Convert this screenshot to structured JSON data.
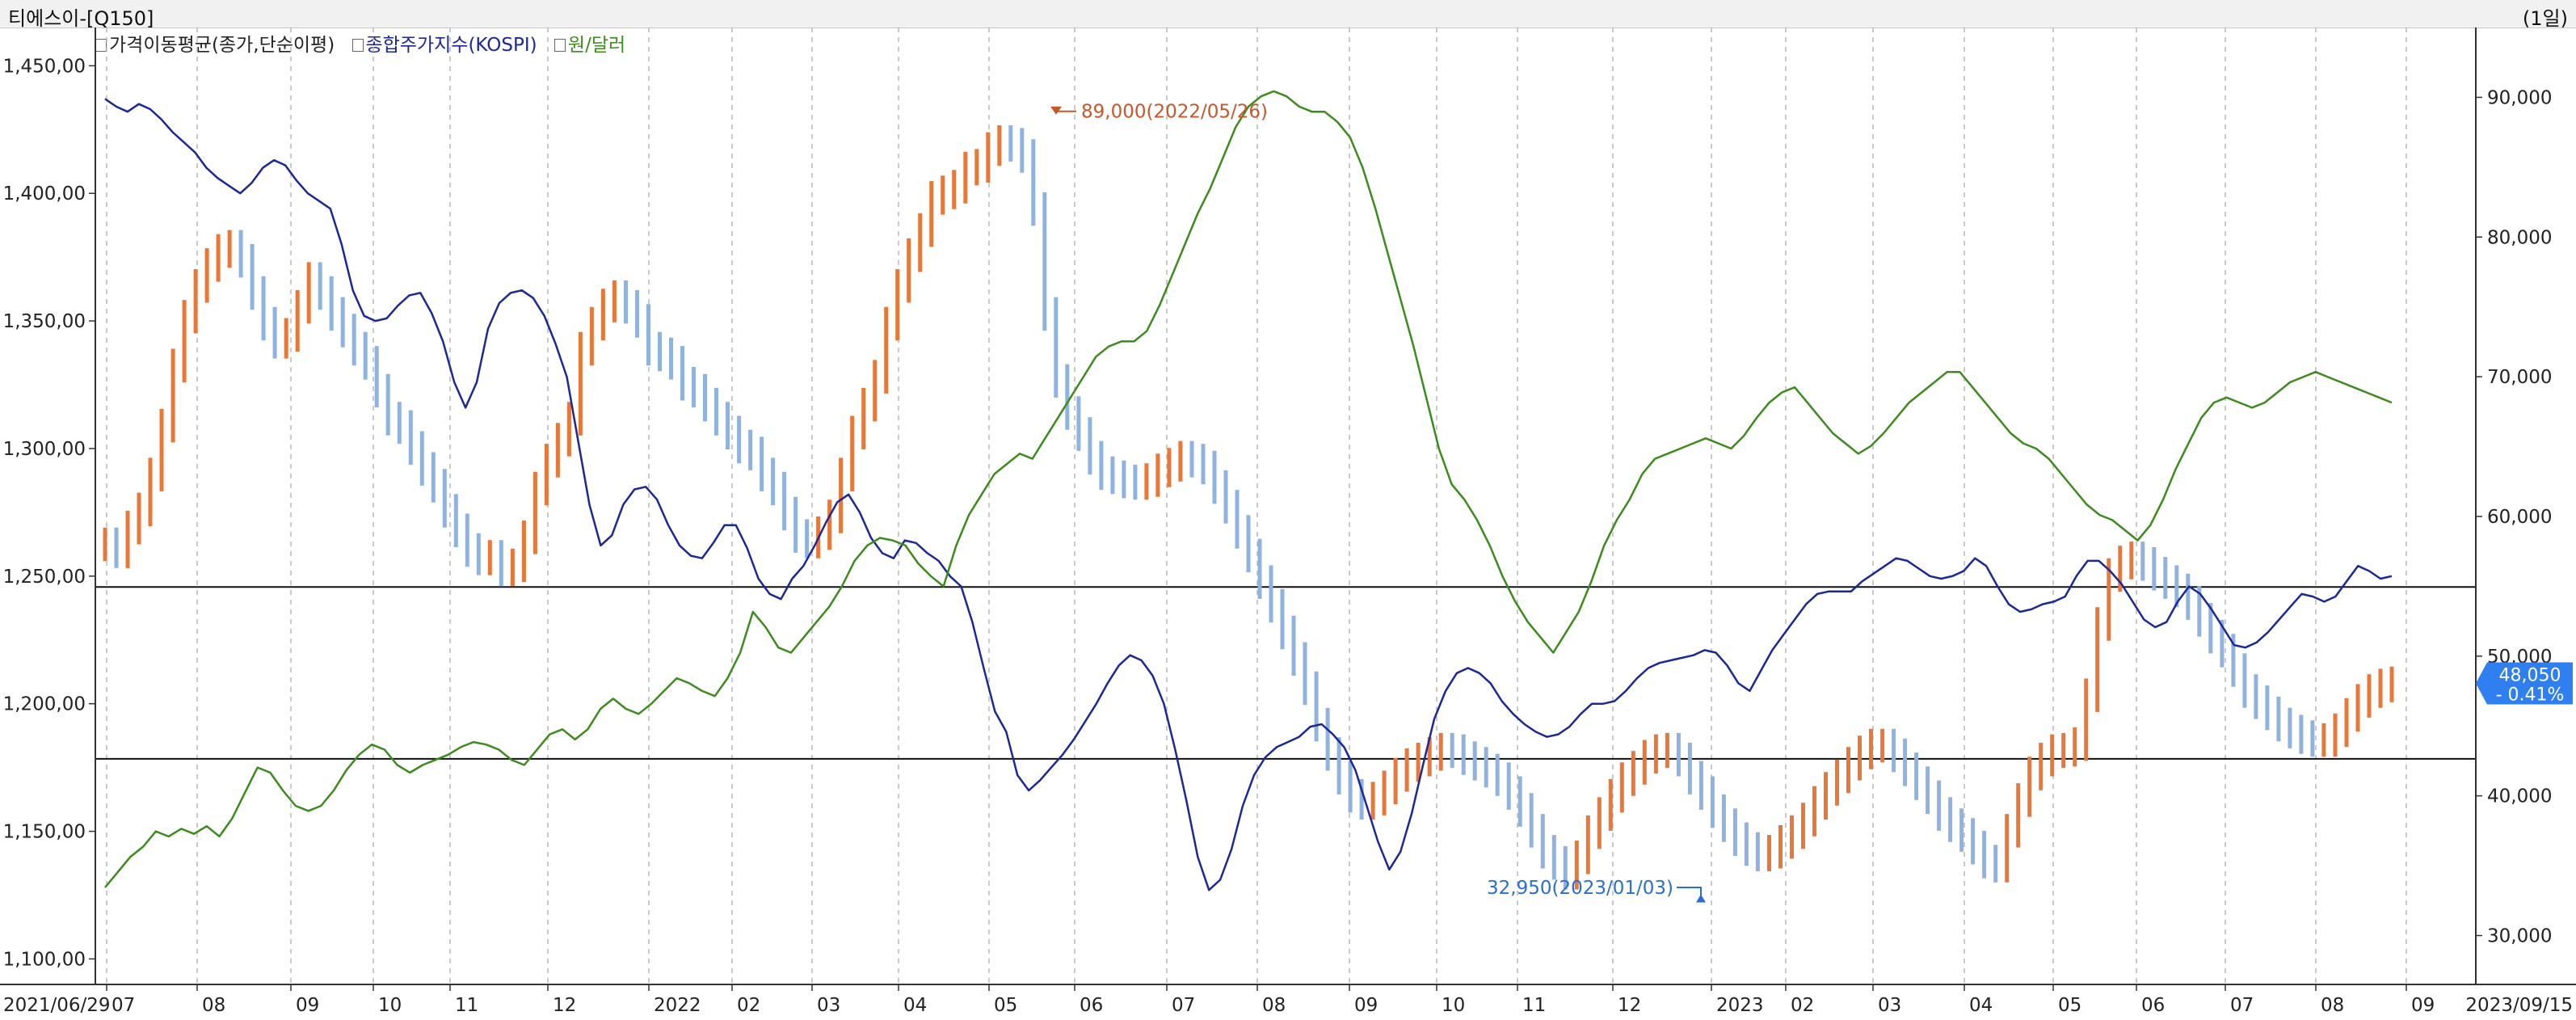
{
  "window": {
    "title": "티에스이-[Q150]",
    "period": "(1일)"
  },
  "legend": [
    {
      "label": "가격이동평균(종가,단순이평)",
      "color": "#222222"
    },
    {
      "label": "종합주가지수(KOSPI)",
      "color": "#1c2896"
    },
    {
      "label": "원/달러",
      "color": "#3d8a1e"
    }
  ],
  "chart_data": {
    "type": "line",
    "x_start_label": "2021/06/29",
    "x_end_label": "2023/09/15",
    "xticks": [
      "07",
      "08",
      "09",
      "10",
      "11",
      "12",
      "2022",
      "02",
      "03",
      "04",
      "05",
      "06",
      "07",
      "08",
      "09",
      "10",
      "11",
      "12",
      "2023",
      "02",
      "03",
      "04",
      "05",
      "06",
      "07",
      "08",
      "09"
    ],
    "left_axis": {
      "ticks": [
        "1,100,00",
        "1,150,00",
        "1,200,00",
        "1,250,00",
        "1,300,00",
        "1,350,00",
        "1,400,00",
        "1,450,00"
      ],
      "range": [
        1090,
        1465
      ]
    },
    "right_axis": {
      "ticks": [
        "30,000",
        "40,000",
        "50,000",
        "60,000",
        "70,000",
        "80,000",
        "90,000"
      ],
      "range": [
        26500,
        95000
      ]
    },
    "price_annotations": {
      "high": "89,000(2022/05/26)",
      "low": "32,950(2023/01/03)"
    },
    "current_value": {
      "price": "48,050",
      "change": "- 0.41%"
    },
    "horizontal_lines_right_axis": [
      54950,
      42650
    ],
    "series": [
      {
        "name": "가격이동평균(종가,단순이평)",
        "axis": "right",
        "color_up": "#e8773a",
        "color_down": "#8fb3de",
        "values": [
          58000,
          57500,
          59200,
          60500,
          63000,
          66500,
          70800,
          74300,
          76500,
          78000,
          79000,
          79300,
          78300,
          76000,
          73800,
          72500,
          73000,
          75000,
          77000,
          76000,
          74500,
          73300,
          72000,
          71000,
          69000,
          67000,
          66400,
          64900,
          63400,
          62200,
          60400,
          59000,
          57600,
          57000,
          57100,
          56200,
          56500,
          58500,
          62000,
          64000,
          65500,
          67000,
          72000,
          73800,
          75100,
          75700,
          75000,
          74000,
          72000,
          71600,
          71000,
          69500,
          69000,
          68000,
          67000,
          66000,
          65000,
          64500,
          63000,
          62000,
          60200,
          58600,
          58200,
          58800,
          60000,
          63000,
          66000,
          68000,
          70000,
          73800,
          76500,
          78700,
          80500,
          82800,
          83200,
          83600,
          84900,
          85100,
          86300,
          86800,
          86600,
          85800,
          82000,
          74500,
          69700,
          67400,
          65900,
          64200,
          63100,
          62800,
          62500,
          62400,
          62600,
          63300,
          63700,
          64200,
          64000,
          63500,
          62100,
          60700,
          58900,
          57200,
          55300,
          53600,
          51700,
          49800,
          47700,
          45100,
          43000,
          41300,
          40000,
          39500,
          39800,
          40600,
          41500,
          42200,
          42600,
          43000,
          43300,
          43200,
          42700,
          42300,
          41800,
          41200,
          40200,
          39000,
          37500,
          36000,
          35200,
          34500,
          35600,
          37400,
          38700,
          40000,
          41200,
          42000,
          42800,
          43200,
          43300,
          42600,
          41300,
          40200,
          38900,
          37900,
          36900,
          36200,
          35800,
          36000,
          36700,
          37400,
          38300,
          39500,
          40500,
          41400,
          42300,
          43100,
          43600,
          43600,
          42900,
          41900,
          40900,
          39900,
          38700,
          37900,
          37200,
          36300,
          35300,
          35000,
          37500,
          39700,
          41600,
          42600,
          43200,
          43300,
          43700,
          47200,
          52300,
          55800,
          56700,
          57000,
          56600,
          55900,
          55300,
          54700,
          53800,
          52600,
          51400,
          50400,
          49000,
          47500,
          46700,
          45900,
          45100,
          44600,
          44200,
          44000,
          44000,
          44700,
          45800,
          46800,
          47500,
          47900,
          48050
        ]
      },
      {
        "name": "종합주가지수(KOSPI)",
        "axis": "left",
        "color": "#1c2896",
        "values": [
          1437,
          1434,
          1432,
          1435,
          1433,
          1429,
          1424,
          1420,
          1416,
          1410,
          1406,
          1403,
          1400,
          1404,
          1410,
          1413,
          1411,
          1405,
          1400,
          1397,
          1394,
          1380,
          1362,
          1352,
          1350,
          1351,
          1356,
          1360,
          1361,
          1353,
          1342,
          1326,
          1316,
          1326,
          1347,
          1357,
          1361,
          1362,
          1359,
          1352,
          1341,
          1328,
          1303,
          1278,
          1262,
          1266,
          1278,
          1284,
          1285,
          1280,
          1270,
          1262,
          1258,
          1257,
          1263,
          1270,
          1270,
          1261,
          1249,
          1243,
          1241,
          1249,
          1254,
          1262,
          1271,
          1279,
          1282,
          1275,
          1265,
          1259,
          1257,
          1264,
          1263,
          1259,
          1256,
          1250,
          1246,
          1232,
          1214,
          1197,
          1189,
          1172,
          1166,
          1170,
          1175,
          1180,
          1186,
          1193,
          1200,
          1208,
          1215,
          1219,
          1217,
          1211,
          1200,
          1182,
          1162,
          1140,
          1127,
          1131,
          1143,
          1160,
          1172,
          1179,
          1183,
          1185,
          1187,
          1191,
          1192,
          1188,
          1183,
          1174,
          1160,
          1146,
          1135,
          1142,
          1157,
          1176,
          1194,
          1205,
          1212,
          1214,
          1212,
          1208,
          1201,
          1196,
          1192,
          1189,
          1187,
          1188,
          1191,
          1196,
          1200,
          1200,
          1201,
          1205,
          1210,
          1214,
          1216,
          1217,
          1218,
          1219,
          1221,
          1220,
          1215,
          1208,
          1205,
          1213,
          1221,
          1227,
          1233,
          1239,
          1243,
          1244,
          1244,
          1244,
          1248,
          1251,
          1254,
          1257,
          1256,
          1253,
          1250,
          1249,
          1250,
          1252,
          1257,
          1254,
          1246,
          1239,
          1236,
          1237,
          1239,
          1240,
          1242,
          1250,
          1256,
          1256,
          1252,
          1247,
          1240,
          1233,
          1230,
          1232,
          1240,
          1246,
          1243,
          1237,
          1230,
          1223,
          1222,
          1224,
          1228,
          1233,
          1238,
          1243,
          1242,
          1240,
          1242,
          1248,
          1254,
          1252,
          1249,
          1250
        ]
      },
      {
        "name": "원/달러",
        "axis": "left",
        "color": "#3d8a1e",
        "values": [
          1128,
          1134,
          1140,
          1144,
          1150,
          1148,
          1151,
          1149,
          1152,
          1148,
          1155,
          1165,
          1175,
          1173,
          1166,
          1160,
          1158,
          1160,
          1166,
          1174,
          1180,
          1184,
          1182,
          1176,
          1173,
          1176,
          1178,
          1180,
          1183,
          1185,
          1184,
          1182,
          1178,
          1176,
          1182,
          1188,
          1190,
          1186,
          1190,
          1198,
          1202,
          1198,
          1196,
          1200,
          1205,
          1210,
          1208,
          1205,
          1203,
          1210,
          1220,
          1236,
          1230,
          1222,
          1220,
          1226,
          1232,
          1238,
          1246,
          1256,
          1262,
          1265,
          1264,
          1262,
          1255,
          1250,
          1246,
          1262,
          1274,
          1282,
          1290,
          1294,
          1298,
          1296,
          1304,
          1312,
          1320,
          1328,
          1336,
          1340,
          1342,
          1342,
          1346,
          1356,
          1368,
          1380,
          1392,
          1402,
          1414,
          1426,
          1434,
          1438,
          1440,
          1438,
          1434,
          1432,
          1432,
          1428,
          1422,
          1410,
          1394,
          1376,
          1358,
          1340,
          1320,
          1300,
          1286,
          1280,
          1272,
          1262,
          1250,
          1240,
          1232,
          1226,
          1220,
          1228,
          1236,
          1248,
          1262,
          1272,
          1280,
          1290,
          1296,
          1298,
          1300,
          1302,
          1304,
          1302,
          1300,
          1305,
          1312,
          1318,
          1322,
          1324,
          1318,
          1312,
          1306,
          1302,
          1298,
          1301,
          1306,
          1312,
          1318,
          1322,
          1326,
          1330,
          1330,
          1324,
          1318,
          1312,
          1306,
          1302,
          1300,
          1296,
          1290,
          1284,
          1278,
          1274,
          1272,
          1268,
          1264,
          1270,
          1280,
          1292,
          1302,
          1312,
          1318,
          1320,
          1318,
          1316,
          1318,
          1322,
          1326,
          1328,
          1330,
          1328,
          1326,
          1324,
          1322,
          1320,
          1318
        ]
      }
    ]
  }
}
